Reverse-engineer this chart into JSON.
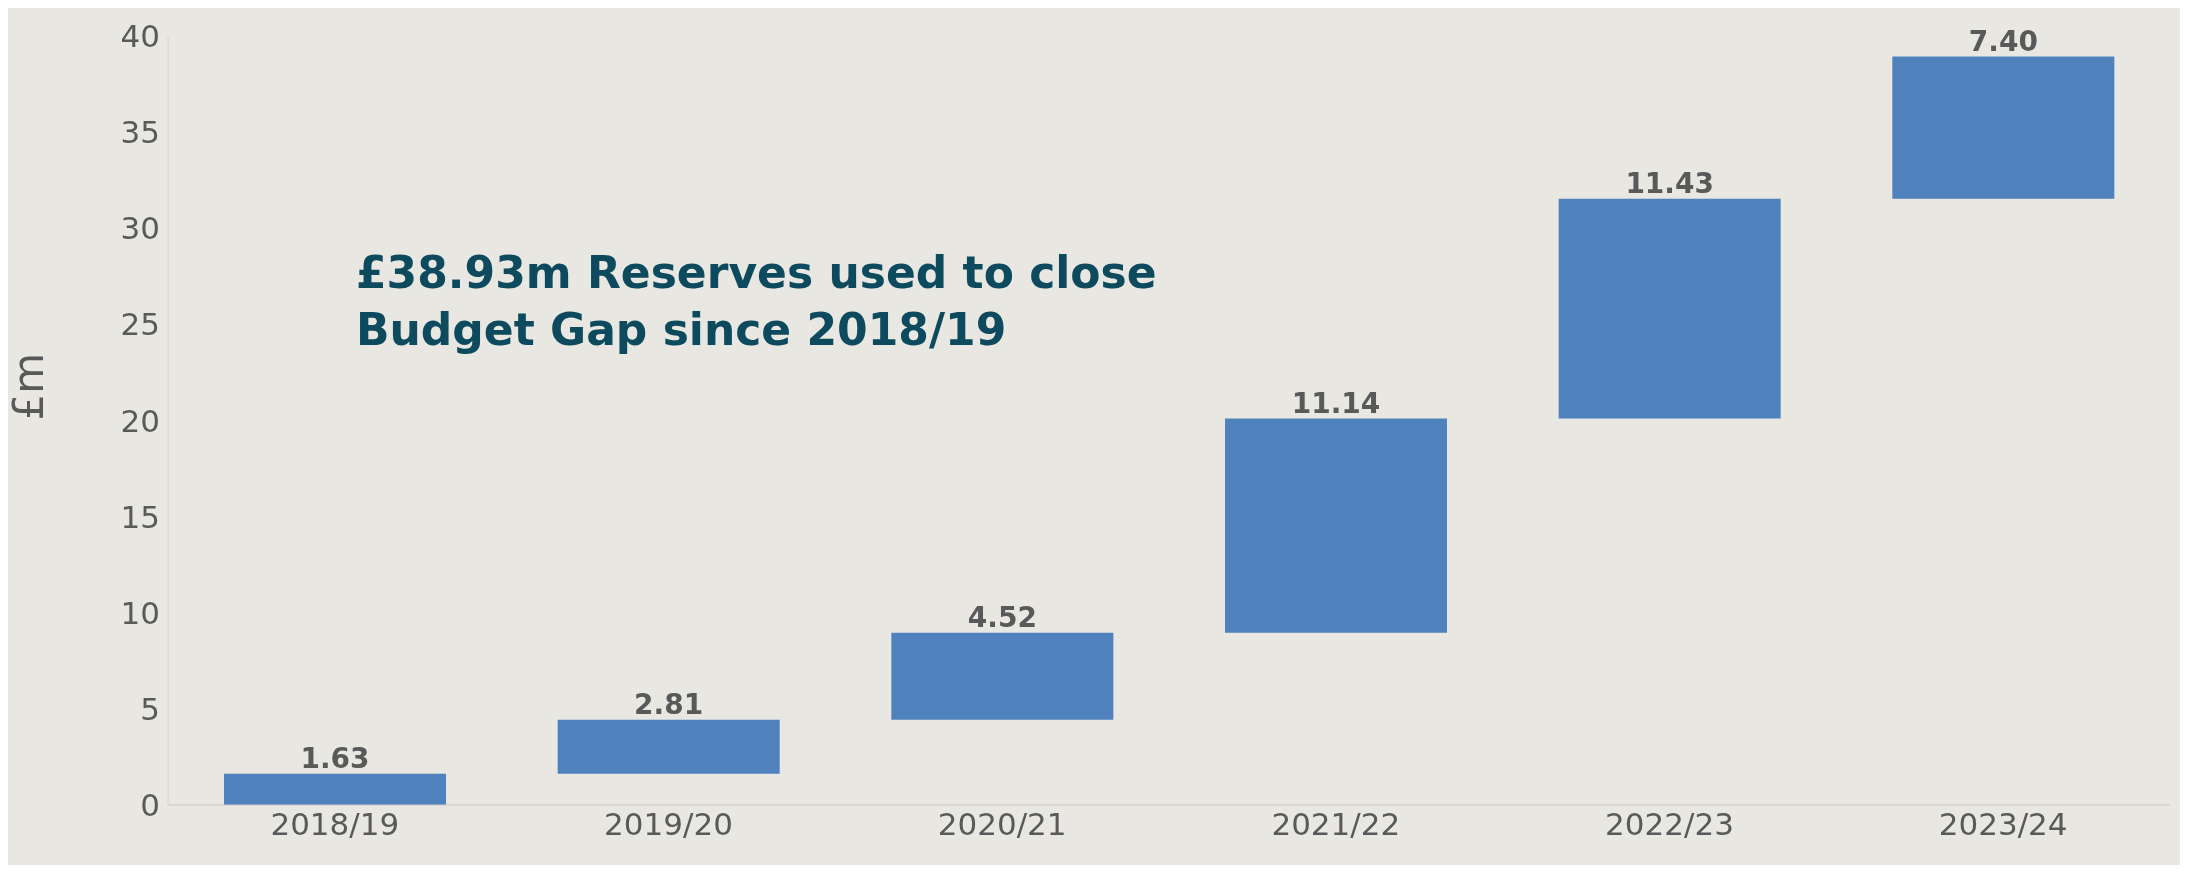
{
  "chart_data": {
    "type": "bar",
    "categories": [
      "2018/19",
      "2019/20",
      "2020/21",
      "2021/22",
      "2022/23",
      "2023/24"
    ],
    "values": [
      1.63,
      2.81,
      4.52,
      11.14,
      11.43,
      7.4
    ],
    "base": [
      0,
      1.63,
      4.44,
      8.96,
      20.1,
      31.53
    ],
    "color": "#4f81bd",
    "value_labels": [
      "1.63",
      "2.81",
      "4.52",
      "11.14",
      "11.43",
      "7.40"
    ],
    "ylabel": "£m",
    "ylim": [
      0,
      40
    ],
    "yticks": [
      0,
      5,
      10,
      15,
      20,
      25,
      30,
      35,
      40
    ],
    "annotations": [
      "£38.93m Reserves used to close\nBudget Gap since 2018/19"
    ]
  }
}
